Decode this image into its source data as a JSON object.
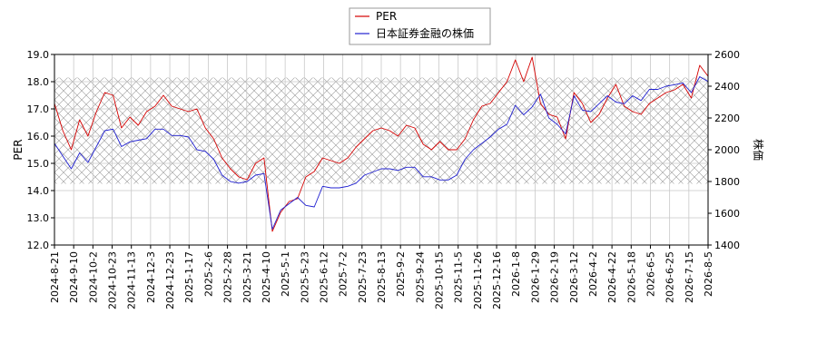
{
  "chart_data": {
    "type": "line",
    "title": "",
    "xlabel": "",
    "ylabel_left": "PER",
    "ylabel_right": "株価",
    "ylim_left": [
      12.0,
      19.0
    ],
    "ylim_right": [
      1400,
      2600
    ],
    "yticks_left": [
      "12.0",
      "13.0",
      "14.0",
      "15.0",
      "16.0",
      "17.0",
      "18.0",
      "19.0"
    ],
    "yticks_right": [
      "1400",
      "1600",
      "1800",
      "2000",
      "2200",
      "2400",
      "2600"
    ],
    "grid": true,
    "hatch_band": [
      14.25,
      18.15
    ],
    "legend_position": "top-center",
    "x_ticks": [
      "2024-8-21",
      "2024-9-10",
      "2024-10-2",
      "2024-10-23",
      "2024-11-13",
      "2024-12-3",
      "2024-12-23",
      "2025-1-17",
      "2025-2-6",
      "2025-2-28",
      "2025-3-21",
      "2025-4-10",
      "2025-5-1",
      "2025-5-23",
      "2025-6-12",
      "2025-7-2",
      "2025-7-23",
      "2025-8-13",
      "2025-9-2",
      "2025-9-24",
      "2025-10-15",
      "2025-11-5",
      "2025-11-26",
      "2025-12-16",
      "2026-1-8",
      "2026-1-29",
      "2026-2-19",
      "2026-3-12",
      "2026-4-2",
      "2026-4-22",
      "2026-5-18",
      "2026-6-5",
      "2026-6-25",
      "2026-7-15",
      "2026-8-5"
    ],
    "series": [
      {
        "name": "PER",
        "color": "#d40000",
        "axis": "left",
        "values": [
          17.2,
          16.2,
          15.5,
          16.6,
          16.0,
          16.9,
          17.6,
          17.5,
          16.3,
          16.7,
          16.4,
          16.9,
          17.1,
          17.5,
          17.1,
          17.0,
          16.9,
          17.0,
          16.3,
          15.9,
          15.2,
          14.8,
          14.5,
          14.4,
          15.0,
          15.2,
          12.5,
          13.2,
          13.6,
          13.7,
          14.5,
          14.7,
          15.2,
          15.1,
          15.0,
          15.2,
          15.6,
          15.9,
          16.2,
          16.3,
          16.2,
          16.0,
          16.4,
          16.3,
          15.7,
          15.5,
          15.8,
          15.5,
          15.5,
          15.9,
          16.6,
          17.1,
          17.2,
          17.6,
          18.0,
          18.8,
          18.0,
          18.9,
          17.2,
          16.8,
          16.7,
          15.9,
          17.6,
          17.2,
          16.5,
          16.8,
          17.4,
          17.9,
          17.1,
          16.9,
          16.8,
          17.2,
          17.4,
          17.6,
          17.7,
          17.9,
          17.4,
          18.6,
          18.2
        ]
      },
      {
        "name": "日本証券金融の株価",
        "color": "#2020d0",
        "axis": "right",
        "values": [
          2040,
          1960,
          1880,
          1980,
          1920,
          2020,
          2120,
          2130,
          2020,
          2050,
          2060,
          2070,
          2130,
          2130,
          2090,
          2090,
          2080,
          2000,
          1990,
          1940,
          1840,
          1800,
          1790,
          1800,
          1840,
          1850,
          1500,
          1620,
          1660,
          1700,
          1650,
          1640,
          1770,
          1760,
          1760,
          1770,
          1790,
          1840,
          1860,
          1880,
          1880,
          1870,
          1890,
          1890,
          1830,
          1830,
          1810,
          1810,
          1840,
          1940,
          2000,
          2040,
          2080,
          2130,
          2160,
          2280,
          2220,
          2270,
          2350,
          2200,
          2160,
          2100,
          2340,
          2250,
          2240,
          2290,
          2340,
          2300,
          2290,
          2340,
          2310,
          2380,
          2380,
          2400,
          2410,
          2420,
          2360,
          2460,
          2430
        ]
      }
    ]
  }
}
